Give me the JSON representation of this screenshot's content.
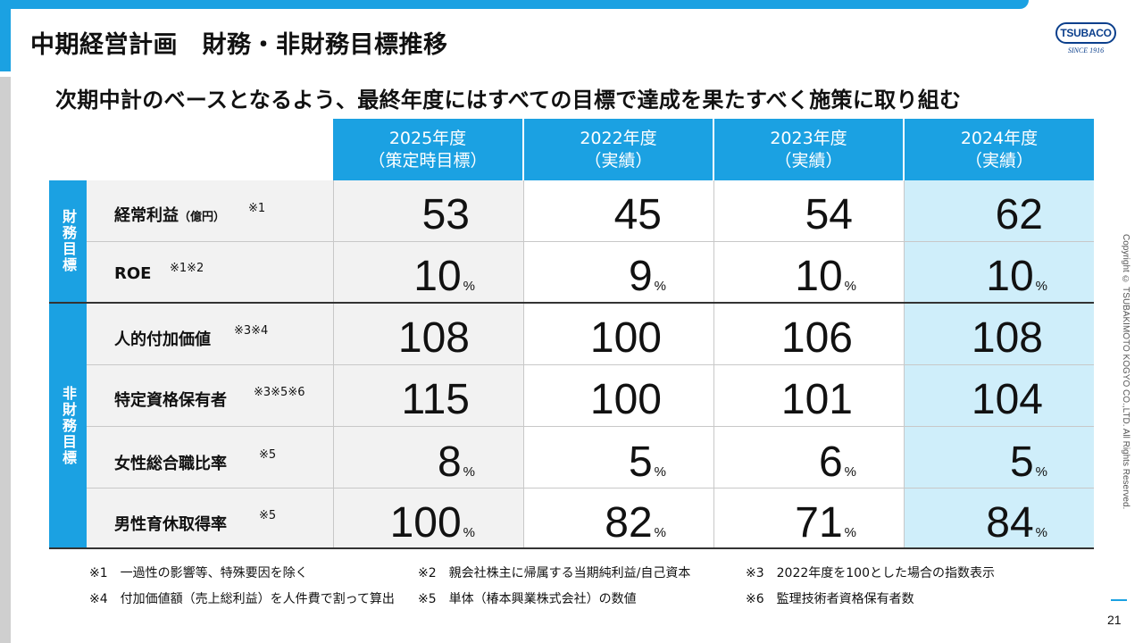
{
  "title": "中期経営計画　財務・非財務目標推移",
  "subtitle": "次期中計のベースとなるよう、最終年度にはすべての目標で達成を果たすべく施策に取り組む",
  "logo": {
    "brand": "TSUBACO",
    "since": "SINCE 1916"
  },
  "copyright": "Copyright © TSUBAKIMOTO KOGYO CO.,LTD. All Rights Reserved.",
  "page_number": "21",
  "columns": [
    {
      "line1": "2025年度",
      "line2": "（策定時目標）"
    },
    {
      "line1": "2022年度",
      "line2": "（実績）"
    },
    {
      "line1": "2023年度",
      "line2": "（実績）"
    },
    {
      "line1": "2024年度",
      "line2": "（実績）"
    }
  ],
  "groups": {
    "financial": "財務目標",
    "non_financial": "非財務目標"
  },
  "rows": [
    {
      "label": "経常利益",
      "unit": "（億円）",
      "note": "※1",
      "values": [
        "53",
        "45",
        "54",
        "62"
      ],
      "pct": [
        "",
        "",
        "",
        ""
      ]
    },
    {
      "label": "ROE",
      "unit": "",
      "note": "※1※2",
      "values": [
        "10",
        "9",
        "10",
        "10"
      ],
      "pct": [
        "%",
        "%",
        "%",
        "%"
      ]
    },
    {
      "label": "人的付加価値",
      "unit": "",
      "note": "※3※4",
      "values": [
        "108",
        "100",
        "106",
        "108"
      ],
      "pct": [
        "",
        "",
        "",
        ""
      ]
    },
    {
      "label": "特定資格保有者",
      "unit": "",
      "note": "※3※5※6",
      "values": [
        "115",
        "100",
        "101",
        "104"
      ],
      "pct": [
        "",
        "",
        "",
        ""
      ]
    },
    {
      "label": "女性総合職比率",
      "unit": "",
      "note": "※5",
      "values": [
        "8",
        "5",
        "6",
        "5"
      ],
      "pct": [
        "%",
        "%",
        "%",
        "%"
      ]
    },
    {
      "label": "男性育休取得率",
      "unit": "",
      "note": "※5",
      "values": [
        "100",
        "82",
        "71",
        "84"
      ],
      "pct": [
        "%",
        "%",
        "%",
        "%"
      ]
    }
  ],
  "footnotes": [
    "※1　一過性の影響等、特殊要因を除く",
    "※2　親会社株主に帰属する当期純利益/自己資本",
    "※3　2022年度を100とした場合の指数表示",
    "※4　付加価値額（売上総利益）を人件費で割って算出",
    "※5　単体（椿本興業株式会社）の数値",
    "※6　監理技術者資格保有者数"
  ],
  "colors": {
    "accent": "#1ba1e2",
    "highlight_column": "#cfeefa",
    "label_bg": "#f2f2f2"
  }
}
